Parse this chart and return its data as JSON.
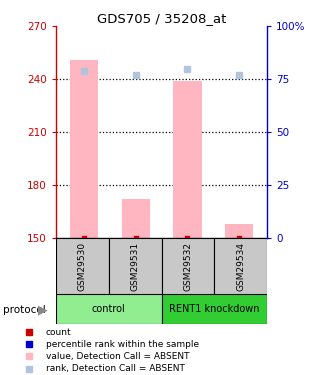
{
  "title": "GDS705 / 35208_at",
  "samples": [
    "GSM29530",
    "GSM29531",
    "GSM29532",
    "GSM29534"
  ],
  "ylim_left": [
    150,
    270
  ],
  "ylim_right": [
    0,
    100
  ],
  "yticks_left": [
    150,
    180,
    210,
    240,
    270
  ],
  "yticks_right": [
    0,
    25,
    50,
    75,
    100
  ],
  "ytick_labels_right": [
    "0",
    "25",
    "50",
    "75",
    "100%"
  ],
  "bar_values": [
    251,
    172,
    239,
    158
  ],
  "rank_values": [
    79,
    77,
    80,
    77
  ],
  "bar_color_absent": "#FFB6C1",
  "rank_color_absent": "#B0C4DE",
  "dot_red_color": "#CC0000",
  "dot_blue_color": "#0000CC",
  "sample_box_color": "#C8C8C8",
  "control_color": "#90EE90",
  "knockdown_color": "#32CD32",
  "protocol_groups": [
    {
      "label": "control",
      "samples": [
        0,
        1
      ]
    },
    {
      "label": "RENT1 knockdown",
      "samples": [
        2,
        3
      ]
    }
  ],
  "left_axis_color": "#CC0000",
  "right_axis_color": "#0000CC",
  "legend_items": [
    {
      "color": "#CC0000",
      "label": "count"
    },
    {
      "color": "#0000CC",
      "label": "percentile rank within the sample"
    },
    {
      "color": "#FFB6C1",
      "label": "value, Detection Call = ABSENT"
    },
    {
      "color": "#B0C4DE",
      "label": "rank, Detection Call = ABSENT"
    }
  ]
}
